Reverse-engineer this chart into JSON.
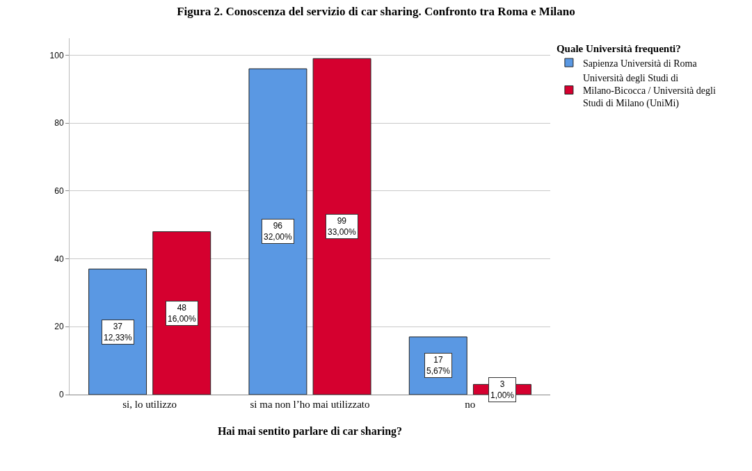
{
  "chart_data": {
    "type": "bar",
    "title": "Figura 2. Conoscenza del servizio di car sharing. Confronto tra Roma e Milano",
    "xlabel": "Hai mai sentito parlare di car sharing?",
    "legend_title": "Quale Università frequenti?",
    "categories": [
      "si, lo utilizzo",
      "si ma non l’ho mai utilizzato",
      "no"
    ],
    "series": [
      {
        "name": "Sapienza Università di Roma",
        "color": "#5a98e3",
        "values": [
          37,
          96,
          17
        ],
        "value_labels": [
          "37\n12,33%",
          "96\n32,00%",
          "17\n5,67%"
        ]
      },
      {
        "name": "Università degli Studi di Milano-Bicocca / Università degli Studi di Milano (UniMi)",
        "color": "#d5002f",
        "values": [
          48,
          99,
          3
        ],
        "value_labels": [
          "48\n16,00%",
          "99\n33,00%",
          "3\n1,00%"
        ]
      }
    ],
    "ylim": [
      0,
      105
    ],
    "yticks": [
      0,
      20,
      40,
      60,
      80,
      100
    ],
    "grid": "y",
    "legend": "top right"
  }
}
